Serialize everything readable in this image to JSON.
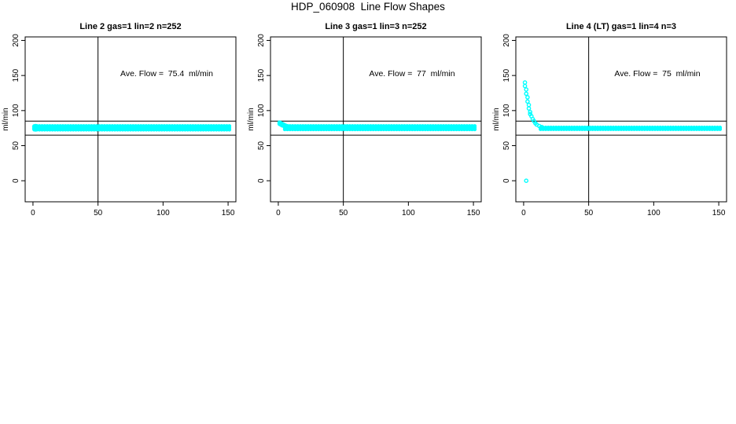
{
  "figure": {
    "title": "HDP_060908  Line Flow Shapes",
    "background_color": "#ffffff",
    "point_color": "#00ffff",
    "line_color": "#000000"
  },
  "chart_data": [
    {
      "type": "scatter",
      "title": "Line 2 gas=1 lin=2 n=252",
      "xlabel": "",
      "ylabel": "ml/min",
      "x_ticks": [
        0,
        50,
        100,
        150
      ],
      "y_ticks": [
        0,
        50,
        100,
        150,
        200
      ],
      "xlim": [
        -6,
        156
      ],
      "ylim": [
        -30,
        205
      ],
      "grid": false,
      "legend": null,
      "marker": "open-circle",
      "annotation": {
        "text": "Ave. Flow =  75.4  ml/min",
        "x": 103,
        "y": 151
      },
      "reference_lines": {
        "horizontal": [
          85,
          65
        ],
        "vertical": [
          50
        ]
      },
      "flat_band": {
        "x_start": 1,
        "x_end": 151,
        "x_step": 2,
        "y_rows": [
          72.8,
          75.4,
          78.0
        ]
      },
      "points": [
        [
          1,
          77
        ],
        [
          1,
          74
        ],
        [
          2,
          78
        ],
        [
          2,
          73
        ],
        [
          3,
          77.5
        ]
      ]
    },
    {
      "type": "scatter",
      "title": "Line 3 gas=1 lin=3 n=252",
      "xlabel": "",
      "ylabel": "ml/min",
      "x_ticks": [
        0,
        50,
        100,
        150
      ],
      "y_ticks": [
        0,
        50,
        100,
        150,
        200
      ],
      "xlim": [
        -6,
        156
      ],
      "ylim": [
        -30,
        205
      ],
      "grid": false,
      "legend": null,
      "marker": "open-circle",
      "annotation": {
        "text": "Ave. Flow =  77  ml/min",
        "x": 103,
        "y": 151
      },
      "reference_lines": {
        "horizontal": [
          85,
          65
        ],
        "vertical": [
          50
        ]
      },
      "flat_band": {
        "x_start": 5,
        "x_end": 151,
        "x_step": 2,
        "y_rows": [
          73.2,
          75.6,
          78.0
        ]
      },
      "points": [
        [
          1,
          83
        ],
        [
          1,
          81
        ],
        [
          2,
          82
        ],
        [
          2,
          80
        ],
        [
          3,
          81
        ],
        [
          3,
          79
        ],
        [
          4,
          80
        ],
        [
          4,
          78.5
        ],
        [
          5,
          79
        ],
        [
          6,
          78.2
        ],
        [
          7,
          77.6
        ],
        [
          8,
          77.2
        ],
        [
          9,
          77
        ],
        [
          10,
          76.8
        ],
        [
          11,
          76.6
        ]
      ]
    },
    {
      "type": "scatter",
      "title": "Line 4 (LT) gas=1 lin=4 n=3",
      "xlabel": "",
      "ylabel": "ml/min",
      "x_ticks": [
        0,
        50,
        100,
        150
      ],
      "y_ticks": [
        0,
        50,
        100,
        150,
        200
      ],
      "xlim": [
        -6,
        156
      ],
      "ylim": [
        -30,
        205
      ],
      "grid": false,
      "legend": null,
      "marker": "open-circle",
      "annotation": {
        "text": "Ave. Flow =  75  ml/min",
        "x": 103,
        "y": 151
      },
      "reference_lines": {
        "horizontal": [
          85,
          65
        ],
        "vertical": [
          50
        ]
      },
      "flat_band": {
        "x_start": 13,
        "x_end": 151,
        "x_step": 2,
        "y_rows": [
          73.5,
          75.8
        ]
      },
      "points": [
        [
          1,
          140
        ],
        [
          1,
          135
        ],
        [
          2,
          130
        ],
        [
          2,
          124
        ],
        [
          3,
          119
        ],
        [
          3,
          113
        ],
        [
          4,
          108
        ],
        [
          4,
          103
        ],
        [
          5,
          98
        ],
        [
          5,
          95
        ],
        [
          6,
          92
        ],
        [
          7,
          88
        ],
        [
          8,
          85
        ],
        [
          9,
          82
        ],
        [
          10,
          80
        ],
        [
          12,
          78
        ],
        [
          14,
          76.5
        ],
        [
          2,
          0
        ]
      ]
    }
  ]
}
